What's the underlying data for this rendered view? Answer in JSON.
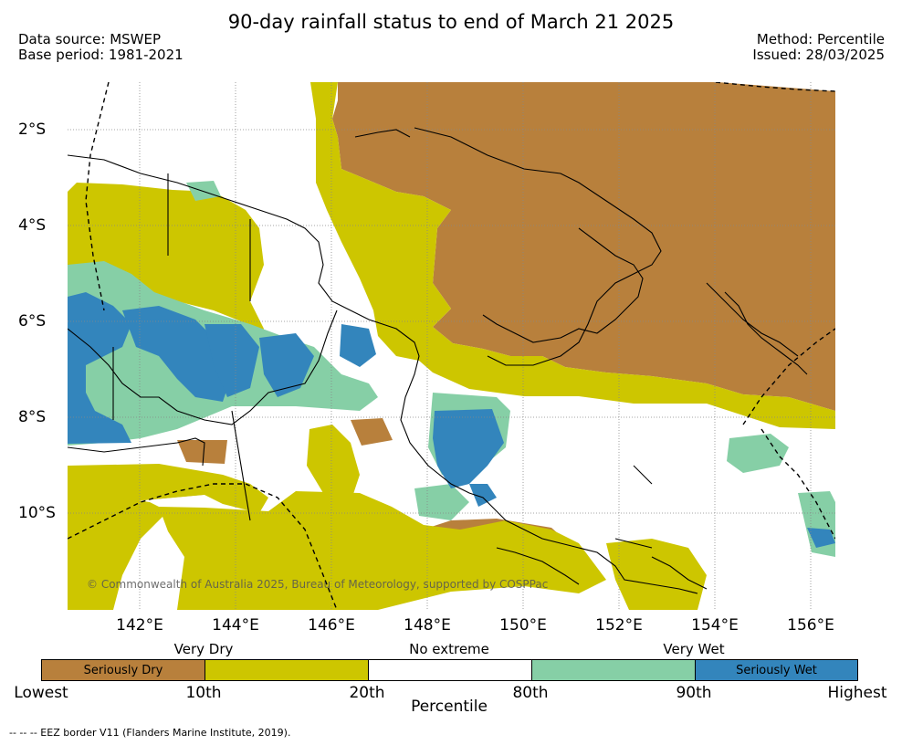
{
  "title": "90-day rainfall status to end of March 21 2025",
  "meta": {
    "data_source": "Data source: MSWEP",
    "base_period": "Base period: 1981-2021",
    "method": "Method: Percentile",
    "issued": "Issued: 28/03/2025"
  },
  "axes": {
    "lat_ticks": [
      "2°S",
      "4°S",
      "6°S",
      "8°S",
      "10°S"
    ],
    "lon_ticks": [
      "142°E",
      "144°E",
      "146°E",
      "148°E",
      "150°E",
      "152°E",
      "154°E",
      "156°E"
    ]
  },
  "copyright": "© Commonwealth of Australia 2025, Bureau of Meteorology, supported by COSPPac",
  "legend": {
    "categories": [
      "Very Dry",
      "No extreme",
      "Very Wet"
    ],
    "segments": [
      {
        "label": "Seriously Dry",
        "color": "#b8803c"
      },
      {
        "label": "",
        "color": "#cdc600"
      },
      {
        "label": "",
        "color": "#ffffff"
      },
      {
        "label": "",
        "color": "#86cfa6"
      },
      {
        "label": "Seriously Wet",
        "color": "#3385bc"
      }
    ],
    "ticks": [
      "Lowest",
      "10th",
      "20th",
      "80th",
      "90th",
      "Highest"
    ],
    "axis_title": "Percentile"
  },
  "footnote": "--  --  -- EEZ border V11 (Flanders Marine Institute, 2019).",
  "colors": {
    "seriously_dry": "#b8803c",
    "very_dry": "#cdc600",
    "very_wet": "#86cfa6",
    "seriously_wet": "#3385bc"
  }
}
